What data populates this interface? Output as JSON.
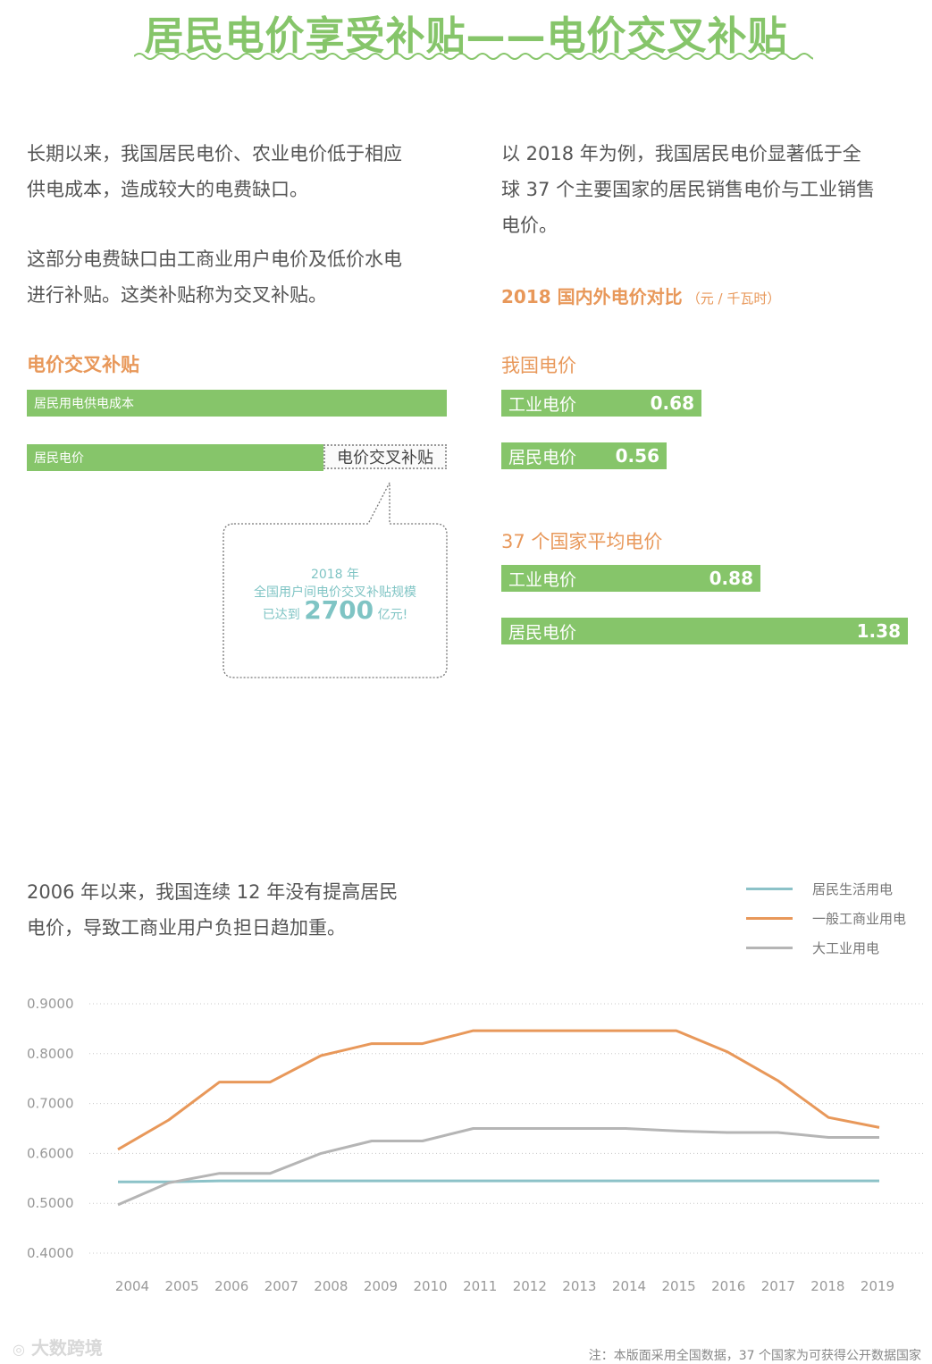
{
  "page_title": "居民电价享受补贴——电价交叉补贴",
  "left_text": {
    "para1": [
      "长期以来，我国居民电价、农业电价低于相应",
      "供电成本，造成较大的电费缺口。"
    ],
    "para2": [
      "这部分电费缺口由工商业用户电价及低价水电",
      "进行补贴。这类补贴称为交叉补贴。"
    ]
  },
  "right_text": {
    "para1": [
      "以 2018 年为例，我国居民电价显著低于全",
      "球 37 个主要国家的居民销售电价与工业销售",
      "电价。"
    ]
  },
  "cross_subsidy": {
    "heading": "电价交叉补贴",
    "supply_cost_label": "居民用电供电成本",
    "resident_price_label": "居民电价",
    "subsidy_label": "电价交叉补贴",
    "bubble": {
      "line1": "2018 年",
      "line2": "全国用户间电价交叉补贴规模",
      "prefix": "已达到",
      "amount": "2700",
      "suffix": "亿元!"
    }
  },
  "comparison": {
    "heading": "2018 国内外电价对比",
    "unit": "（元 / 千瓦时）",
    "china": {
      "title": "我国电价",
      "bars": [
        {
          "label": "工业电价",
          "value": 0.68
        },
        {
          "label": "居民电价",
          "value": 0.56
        }
      ]
    },
    "avg37": {
      "title": "37 个国家平均电价",
      "bars": [
        {
          "label": "工业电价",
          "value": 0.88
        },
        {
          "label": "居民电价",
          "value": 1.38
        }
      ]
    }
  },
  "trend_text": [
    "2006 年以来，我国连续 12 年没有提高居民",
    "电价，导致工商业用户负担日趋加重。"
  ],
  "colors": {
    "green": "#86c56a",
    "orange": "#e8985a",
    "residential_line": "#8cc2c8",
    "commercial_line": "#e8985a",
    "industrial_line": "#b5b5b5"
  },
  "chart_data": {
    "type": "line",
    "title": "",
    "xlabel": "",
    "ylabel": "",
    "x": [
      "2004",
      "2005",
      "2006",
      "2007",
      "2008",
      "2009",
      "2010",
      "2011",
      "2012",
      "2013",
      "2014",
      "2015",
      "2016",
      "2017",
      "2018",
      "2019"
    ],
    "y_ticks": [
      "0.9000",
      "0.8000",
      "0.7000",
      "0.6000",
      "0.5000",
      "0.4000"
    ],
    "ylim": [
      0.4,
      0.9
    ],
    "grid": "horizontal dotted",
    "legend_position": "top-right",
    "series": [
      {
        "name": "居民生活用电",
        "color": "#8cc2c8",
        "values": [
          0.543,
          0.543,
          0.545,
          0.545,
          0.545,
          0.545,
          0.545,
          0.545,
          0.545,
          0.545,
          0.545,
          0.545,
          0.545,
          0.545,
          0.545,
          0.545
        ]
      },
      {
        "name": "一般工商业用电",
        "color": "#e8985a",
        "values": [
          0.608,
          0.667,
          0.743,
          0.743,
          0.796,
          0.82,
          0.82,
          0.846,
          0.846,
          0.846,
          0.846,
          0.846,
          0.804,
          0.746,
          0.672,
          0.652
        ]
      },
      {
        "name": "大工业用电",
        "color": "#b5b5b5",
        "values": [
          0.497,
          0.541,
          0.56,
          0.56,
          0.6,
          0.625,
          0.625,
          0.65,
          0.65,
          0.65,
          0.65,
          0.645,
          0.642,
          0.642,
          0.632,
          0.632
        ]
      }
    ]
  },
  "footnote": "注：本版面采用全国数据，37 个国家为可获得公开数据国家",
  "watermark": "大数跨境"
}
